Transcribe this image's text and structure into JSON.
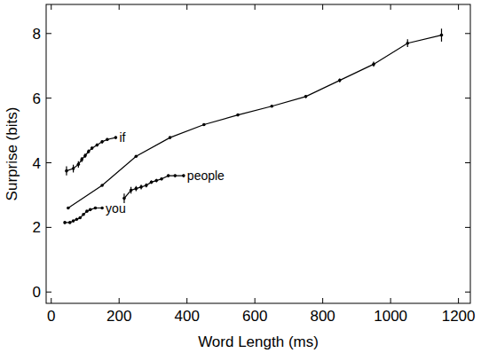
{
  "chart_data": {
    "type": "line",
    "x_label": "Word Length (ms)",
    "y_label": "Surprise (bits)",
    "xlim": [
      -15,
      1235
    ],
    "ylim": [
      -0.35,
      8.9
    ],
    "xticks": [
      0,
      200,
      400,
      600,
      800,
      1000,
      1200
    ],
    "yticks": [
      0,
      2,
      4,
      6,
      8
    ],
    "grid": false,
    "color": "#000000",
    "marker": "dot",
    "series": [
      {
        "x": [
          50,
          150,
          250,
          350,
          450,
          550,
          650,
          750,
          850,
          950,
          1050,
          1150
        ],
        "values": [
          2.6,
          3.3,
          4.2,
          4.78,
          5.18,
          5.48,
          5.75,
          6.05,
          6.55,
          7.05,
          7.7,
          7.95
        ],
        "errors": [
          0.03,
          0.03,
          0.03,
          0.03,
          0.03,
          0.03,
          0.03,
          0.04,
          0.06,
          0.08,
          0.12,
          0.2
        ]
      },
      {
        "name": "if",
        "x": [
          45,
          65,
          80,
          90,
          100,
          110,
          120,
          135,
          150,
          165,
          190
        ],
        "values": [
          3.75,
          3.82,
          3.95,
          4.1,
          4.22,
          4.35,
          4.45,
          4.55,
          4.65,
          4.72,
          4.78
        ],
        "errors": [
          0.14,
          0.12,
          0.1,
          0.08,
          0.07,
          0.06,
          0.05,
          0.05,
          0.05,
          0.04,
          0.04
        ]
      },
      {
        "name": "you",
        "x": [
          40,
          55,
          65,
          75,
          85,
          95,
          105,
          115,
          130,
          150
        ],
        "values": [
          2.15,
          2.15,
          2.2,
          2.25,
          2.3,
          2.4,
          2.5,
          2.55,
          2.6,
          2.6
        ],
        "errors": [
          0.04,
          0.03,
          0.03,
          0.03,
          0.03,
          0.03,
          0.03,
          0.03,
          0.03,
          0.03
        ]
      },
      {
        "name": "people",
        "x": [
          215,
          235,
          250,
          265,
          280,
          295,
          310,
          325,
          345,
          365,
          390
        ],
        "values": [
          2.9,
          3.15,
          3.2,
          3.25,
          3.3,
          3.4,
          3.45,
          3.5,
          3.6,
          3.6,
          3.6
        ],
        "errors": [
          0.15,
          0.1,
          0.08,
          0.07,
          0.06,
          0.05,
          0.05,
          0.04,
          0.04,
          0.04,
          0.04
        ]
      }
    ]
  }
}
